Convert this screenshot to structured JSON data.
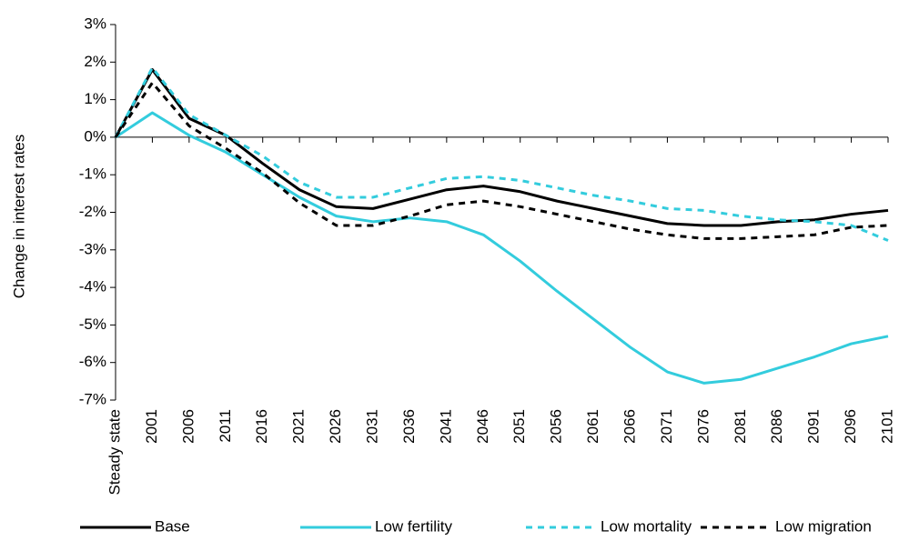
{
  "chart_data": {
    "type": "line",
    "y_label": "Change in interest rates",
    "categories": [
      "Steady state",
      "2001",
      "2006",
      "2011",
      "2016",
      "2021",
      "2026",
      "2031",
      "2036",
      "2041",
      "2046",
      "2051",
      "2056",
      "2061",
      "2066",
      "2071",
      "2076",
      "2081",
      "2086",
      "2091",
      "2096",
      "2101"
    ],
    "series": [
      {
        "name": "Base",
        "color": "#000000",
        "style": "solid",
        "values": [
          0,
          1.8,
          0.5,
          0.05,
          -0.7,
          -1.4,
          -1.85,
          -1.9,
          -1.65,
          -1.4,
          -1.3,
          -1.45,
          -1.7,
          -1.9,
          -2.1,
          -2.3,
          -2.35,
          -2.35,
          -2.25,
          -2.2,
          -2.05,
          -1.95
        ]
      },
      {
        "name": "Low fertility",
        "color": "#33ccdd",
        "style": "solid",
        "values": [
          0,
          0.65,
          0.05,
          -0.4,
          -1.0,
          -1.6,
          -2.1,
          -2.25,
          -2.15,
          -2.25,
          -2.6,
          -3.3,
          -4.1,
          -4.85,
          -5.6,
          -6.25,
          -6.55,
          -6.45,
          -6.15,
          -5.85,
          -5.5,
          -5.3
        ]
      },
      {
        "name": "Low mortality",
        "color": "#33ccdd",
        "style": "dashed",
        "values": [
          0,
          1.85,
          0.6,
          0.05,
          -0.5,
          -1.2,
          -1.6,
          -1.6,
          -1.35,
          -1.1,
          -1.05,
          -1.15,
          -1.35,
          -1.55,
          -1.7,
          -1.9,
          -1.95,
          -2.1,
          -2.2,
          -2.25,
          -2.35,
          -2.75
        ]
      },
      {
        "name": "Low migration",
        "color": "#000000",
        "style": "dashed",
        "values": [
          0,
          1.45,
          0.3,
          -0.3,
          -0.95,
          -1.75,
          -2.35,
          -2.35,
          -2.1,
          -1.8,
          -1.7,
          -1.85,
          -2.05,
          -2.25,
          -2.45,
          -2.6,
          -2.7,
          -2.7,
          -2.65,
          -2.6,
          -2.4,
          -2.35
        ]
      }
    ],
    "ylim": [
      -7,
      3
    ],
    "yticks": [
      {
        "value": -7,
        "label": "-7%"
      },
      {
        "value": -6,
        "label": "-6%"
      },
      {
        "value": -5,
        "label": "-5%"
      },
      {
        "value": -4,
        "label": "-4%"
      },
      {
        "value": -3,
        "label": "-3%"
      },
      {
        "value": -2,
        "label": "-2%"
      },
      {
        "value": -1,
        "label": "-1%"
      },
      {
        "value": 0,
        "label": "0%"
      },
      {
        "value": 1,
        "label": "1%"
      },
      {
        "value": 2,
        "label": "2%"
      },
      {
        "value": 3,
        "label": "3%"
      }
    ]
  }
}
